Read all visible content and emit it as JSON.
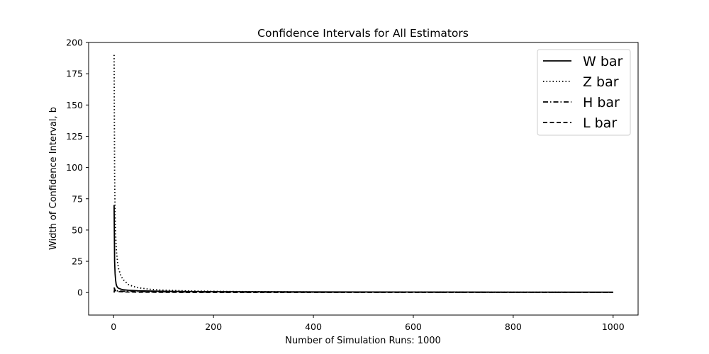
{
  "chart_data": {
    "type": "line",
    "title": "Confidence Intervals for All Estimators",
    "xlabel": "Number of Simulation Runs: 1000",
    "ylabel": "Width of Confidence Interval, b",
    "xlim": [
      -50,
      1050
    ],
    "ylim": [
      -18,
      200
    ],
    "xticks": [
      0,
      200,
      400,
      600,
      800,
      1000
    ],
    "yticks": [
      0,
      25,
      50,
      75,
      100,
      125,
      150,
      175,
      200
    ],
    "xtick_labels": [
      "0",
      "200",
      "400",
      "600",
      "800",
      "1000"
    ],
    "ytick_labels": [
      "0",
      "25",
      "50",
      "75",
      "100",
      "125",
      "150",
      "175",
      "200"
    ],
    "legend_position": "top-right",
    "grid": false,
    "series": [
      {
        "name": "W bar",
        "style": "solid",
        "color": "#000000",
        "x": [
          1,
          2,
          3,
          4,
          5,
          6,
          8,
          10,
          15,
          20,
          30,
          50,
          100,
          200,
          400,
          600,
          800,
          1000
        ],
        "y": [
          70,
          25,
          15,
          10,
          7,
          5.5,
          4,
          3.4,
          2.7,
          2.2,
          1.8,
          1.4,
          1.0,
          0.7,
          0.5,
          0.4,
          0.35,
          0.3
        ]
      },
      {
        "name": "Z bar",
        "style": "dotted",
        "color": "#000000",
        "x": [
          1,
          2,
          3,
          4,
          5,
          6,
          8,
          10,
          15,
          20,
          30,
          40,
          50,
          75,
          100,
          150,
          200,
          300,
          400,
          600,
          800,
          1000
        ],
        "y": [
          190,
          95,
          63,
          47,
          38,
          32,
          24,
          19,
          13,
          10,
          6.3,
          4.8,
          3.8,
          2.5,
          1.9,
          1.3,
          1.0,
          0.65,
          0.48,
          0.32,
          0.24,
          0.19
        ]
      },
      {
        "name": "H bar",
        "style": "dashdot",
        "color": "#000000",
        "x": [
          1,
          2,
          3,
          5,
          10,
          20,
          50,
          100,
          200,
          400,
          600,
          800,
          1000
        ],
        "y": [
          0,
          3,
          2,
          1.5,
          1.2,
          1.0,
          0.8,
          0.6,
          0.4,
          0.3,
          0.25,
          0.2,
          0.2
        ]
      },
      {
        "name": "L bar",
        "style": "dashed",
        "color": "#000000",
        "x": [
          1,
          2,
          3,
          5,
          10,
          20,
          50,
          100,
          200,
          400,
          600,
          800,
          1000
        ],
        "y": [
          4,
          2.5,
          1.8,
          1.2,
          0.8,
          0.5,
          0.3,
          0.2,
          0.1,
          0.05,
          0.04,
          0.03,
          0.03
        ]
      }
    ]
  }
}
